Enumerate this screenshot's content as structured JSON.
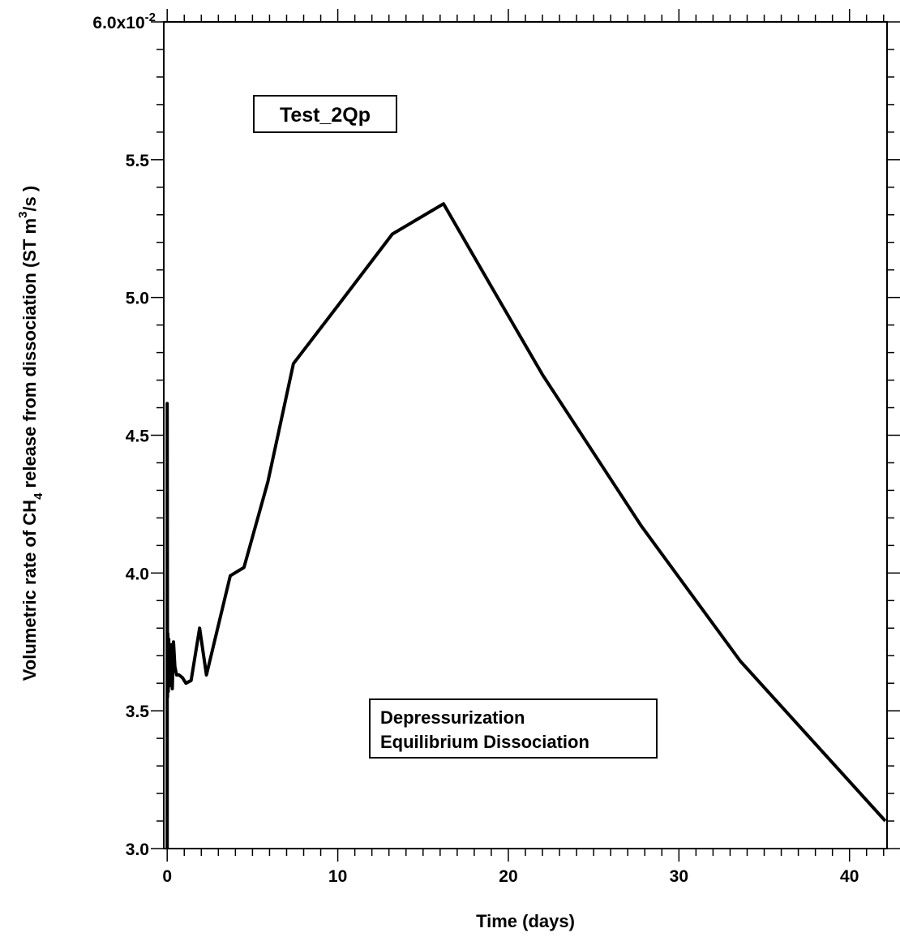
{
  "chart_data": {
    "type": "line",
    "xlabel": "Time (days)",
    "ylabel": {
      "prefix": "Volumetric rate of CH",
      "sub": "4",
      "middle": " release from dissociation (ST m",
      "sup": "3",
      "suffix": "/s )"
    },
    "xlim": [
      -0.2,
      42.2
    ],
    "ylim": [
      0.03,
      0.06
    ],
    "x_ticks": [
      {
        "value": 0,
        "label": "0"
      },
      {
        "value": 10,
        "label": "10"
      },
      {
        "value": 20,
        "label": "20"
      },
      {
        "value": 30,
        "label": "30"
      },
      {
        "value": 40,
        "label": "40"
      }
    ],
    "y_ticks": [
      {
        "value": 0.03,
        "label": "3.0"
      },
      {
        "value": 0.035,
        "label": "3.5"
      },
      {
        "value": 0.04,
        "label": "4.0"
      },
      {
        "value": 0.045,
        "label": "4.5"
      },
      {
        "value": 0.05,
        "label": "5.0"
      },
      {
        "value": 0.055,
        "label": "5.5"
      }
    ],
    "y_top_label": {
      "value": 0.06,
      "base": "6.0x10",
      "exp": "-2"
    },
    "grid": false,
    "annotations": [
      {
        "text": "Test_2Qp"
      },
      {
        "lines": [
          "Depressurization",
          "Equilibrium Dissociation"
        ]
      }
    ],
    "series": [
      {
        "x": [
          0.0,
          0.0,
          0.02,
          0.04,
          0.06,
          0.09,
          0.12,
          0.16,
          0.2,
          0.25,
          0.3,
          0.37,
          0.45,
          0.55,
          0.7,
          0.9,
          1.1,
          1.4,
          1.9,
          2.3,
          3.7,
          4.5,
          5.9,
          7.4,
          10.0,
          13.2,
          16.2,
          19.0,
          22.0,
          27.8,
          33.6,
          42.1
        ],
        "y": [
          0.03,
          0.04615,
          0.0355,
          0.0378,
          0.0357,
          0.0376,
          0.0359,
          0.0372,
          0.0362,
          0.0374,
          0.0358,
          0.0375,
          0.0366,
          0.0363,
          0.0363,
          0.0362,
          0.036,
          0.0361,
          0.038,
          0.0363,
          0.0399,
          0.0402,
          0.0433,
          0.0476,
          0.0497,
          0.0523,
          0.0534,
          0.0504,
          0.0472,
          0.0417,
          0.0368,
          0.031
        ]
      }
    ]
  }
}
